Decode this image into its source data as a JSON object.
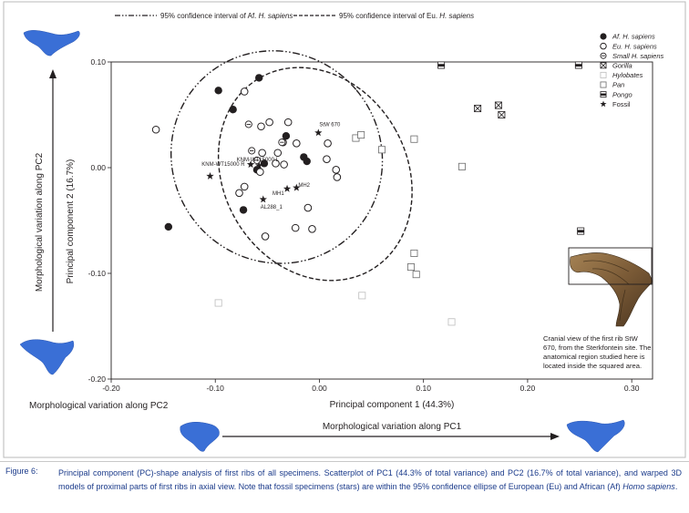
{
  "legend_top": {
    "af_ci": "95% confidence interval of Af. ",
    "eu_ci": "95% confidence interval of Eu. ",
    "species": "H. sapiens"
  },
  "legend_right": {
    "af": "Af. H. sapiens",
    "eu": "Eu. H. sapiens",
    "small": "Small H. sapiens",
    "gorilla": "Gorilla",
    "hylobates": "Hylobates",
    "pan": "Pan",
    "pongo": "Pongo",
    "fossil": "Fossil"
  },
  "side_labels": {
    "pc2_vertical": "Morphological variation along PC2",
    "pc2_bottom": "Morphological variation along PC2",
    "pc1_bottom": "Morphological variation along PC1"
  },
  "inset_caption": [
    "Cranial view of the first rib StW",
    "670, from the Sterkfontein site. The",
    "anatomical region studied here is",
    "located inside the squared area."
  ],
  "caption": {
    "label": "Figure 6:",
    "text": "Principal component (PC)-shape analysis of first ribs of all specimens. Scatterplot of PC1 (44.3% of total variance) and PC2 (16.7% of total variance), and warped 3D models of proximal parts of first ribs in axial view. Note that fossil specimens (stars) are within the 95% confidence ellipse of European (Eu) and African (Af) ",
    "italic": "Homo sapiens",
    "end": "."
  },
  "colors": {
    "model_blue": "#3a6fd6",
    "caption_blue": "#1a3a8a",
    "ink": "#231f20"
  },
  "chart_data": {
    "type": "scatter",
    "xlabel": "Principal component 1 (44.3%)",
    "ylabel": "Principal component 2 (16.7%)",
    "xlim": [
      -0.2,
      0.32
    ],
    "ylim": [
      -0.2,
      0.1
    ],
    "xticks": [
      -0.2,
      -0.1,
      0.0,
      0.1,
      0.2,
      0.3
    ],
    "xtick_labels": [
      "-0.20",
      "-0.10",
      "0.00",
      "0.10",
      "0.20",
      "0.30"
    ],
    "yticks": [
      -0.2,
      -0.1,
      0.0,
      0.1
    ],
    "ytick_labels": [
      "-0.20",
      "-0.10",
      "0.00",
      "0.10"
    ],
    "legend_position": "top-right",
    "ellipses": [
      {
        "group": "Af. H. sapiens",
        "style": "dash-dot",
        "cx": -0.041,
        "cy": 0.01,
        "rx": 0.1,
        "ry": 0.102,
        "rot": -40
      },
      {
        "group": "Eu. H. sapiens",
        "style": "dashed",
        "cx": -0.004,
        "cy": -0.006,
        "rx": 0.088,
        "ry": 0.105,
        "rot": -30
      }
    ],
    "series": [
      {
        "name": "Af. H. sapiens",
        "marker": "filled-circle",
        "points": [
          [
            -0.097,
            0.073
          ],
          [
            -0.083,
            0.055
          ],
          [
            -0.058,
            0.085
          ],
          [
            -0.032,
            0.03
          ],
          [
            -0.015,
            0.01
          ],
          [
            -0.012,
            0.006
          ],
          [
            -0.053,
            0.004
          ],
          [
            -0.06,
            -0.002
          ],
          [
            -0.073,
            -0.04
          ],
          [
            -0.145,
            -0.056
          ]
        ]
      },
      {
        "name": "Eu. H. sapiens",
        "marker": "open-circle",
        "points": [
          [
            -0.157,
            0.036
          ],
          [
            -0.072,
            0.072
          ],
          [
            -0.048,
            0.043
          ],
          [
            -0.056,
            0.039
          ],
          [
            -0.03,
            0.043
          ],
          [
            -0.035,
            0.024
          ],
          [
            -0.022,
            0.023
          ],
          [
            -0.04,
            0.014
          ],
          [
            -0.055,
            0.014
          ],
          [
            -0.042,
            0.004
          ],
          [
            -0.034,
            0.003
          ],
          [
            -0.057,
            -0.004
          ],
          [
            -0.072,
            -0.018
          ],
          [
            -0.077,
            -0.024
          ],
          [
            0.008,
            0.023
          ],
          [
            0.007,
            0.008
          ],
          [
            0.016,
            -0.002
          ],
          [
            0.017,
            -0.009
          ],
          [
            -0.011,
            -0.038
          ],
          [
            -0.023,
            -0.057
          ],
          [
            -0.007,
            -0.058
          ],
          [
            -0.052,
            -0.065
          ]
        ]
      },
      {
        "name": "Small H. sapiens",
        "marker": "circle-minus",
        "points": [
          [
            -0.068,
            0.041
          ],
          [
            -0.065,
            0.016
          ],
          [
            -0.036,
            0.024
          ],
          [
            -0.06,
            0.007
          ]
        ]
      },
      {
        "name": "Gorilla",
        "marker": "box-x",
        "points": [
          [
            0.152,
            0.056
          ],
          [
            0.172,
            0.059
          ],
          [
            0.175,
            0.05
          ]
        ]
      },
      {
        "name": "Hylobates",
        "marker": "light-square",
        "points": [
          [
            -0.097,
            -0.128
          ],
          [
            0.041,
            -0.121
          ],
          [
            0.127,
            -0.146
          ]
        ]
      },
      {
        "name": "Pan",
        "marker": "open-square",
        "points": [
          [
            0.035,
            0.028
          ],
          [
            0.04,
            0.031
          ],
          [
            0.06,
            0.017
          ],
          [
            0.091,
            0.027
          ],
          [
            0.137,
            0.001
          ],
          [
            0.091,
            -0.081
          ],
          [
            0.088,
            -0.094
          ],
          [
            0.093,
            -0.101
          ]
        ]
      },
      {
        "name": "Pongo",
        "marker": "half-square",
        "points": [
          [
            0.117,
            0.097
          ],
          [
            0.249,
            0.097
          ],
          [
            0.251,
            -0.06
          ]
        ]
      },
      {
        "name": "Fossil",
        "marker": "star",
        "points": [
          [
            -0.001,
            0.033
          ],
          [
            -0.058,
            0.002
          ],
          [
            -0.066,
            0.003
          ],
          [
            -0.105,
            -0.008
          ],
          [
            -0.022,
            -0.019
          ],
          [
            -0.031,
            -0.02
          ],
          [
            -0.054,
            -0.03
          ]
        ]
      }
    ],
    "annotations": [
      {
        "text": "StW 670",
        "x": -0.001,
        "y": 0.033
      },
      {
        "text": "KNM-WT15000 L",
        "x": -0.062,
        "y": 0.006
      },
      {
        "text": "KNM-WT15000 R",
        "x": -0.107,
        "y": -0.006
      },
      {
        "text": "MH2",
        "x": -0.022,
        "y": -0.019
      },
      {
        "text": "MH1",
        "x": -0.031,
        "y": -0.02
      },
      {
        "text": "AL288_1",
        "x": -0.054,
        "y": -0.03
      }
    ]
  }
}
